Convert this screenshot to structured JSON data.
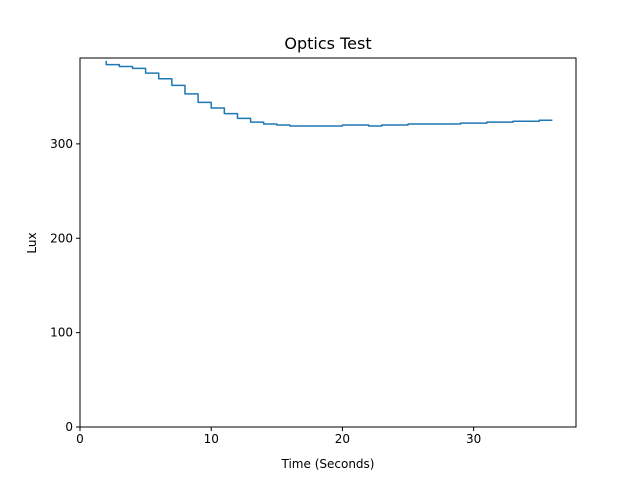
{
  "chart_data": {
    "type": "line",
    "title": "Optics Test",
    "xlabel": "Time (Seconds)",
    "ylabel": "Lux",
    "xlim": [
      0,
      37.8
    ],
    "ylim": [
      0,
      391
    ],
    "xticks": [
      0,
      10,
      20,
      30
    ],
    "yticks": [
      0,
      100,
      200,
      300
    ],
    "grid": false,
    "legend": "none",
    "color": "#1f77b4",
    "series": [
      {
        "x": [
          2.0,
          2.0,
          3.0,
          3.0,
          4.0,
          4.0,
          5.0,
          5.0,
          6.0,
          6.0,
          7.0,
          7.0,
          8.0,
          8.0,
          9.0,
          9.0,
          10.0,
          10.0,
          11.0,
          11.0,
          12.0,
          12.0,
          13.0,
          13.0,
          14.0,
          14.0,
          15.0,
          15.0,
          16.0,
          16.0,
          17.0,
          17.0,
          18.0,
          18.0,
          19.0,
          19.0,
          20.0,
          20.0,
          21.0,
          21.0,
          22.0,
          22.0,
          23.0,
          23.0,
          24.0,
          24.0,
          25.0,
          25.0,
          26.0,
          26.0,
          27.0,
          27.0,
          28.0,
          28.0,
          29.0,
          29.0,
          30.0,
          30.0,
          31.0,
          31.0,
          32.0,
          32.0,
          33.0,
          33.0,
          34.0,
          34.0,
          35.0,
          35.0,
          36.0
        ],
        "y": [
          388,
          384,
          384,
          382,
          382,
          380,
          380,
          375,
          375,
          369,
          369,
          362,
          362,
          353,
          353,
          344,
          344,
          338,
          338,
          332,
          332,
          327,
          327,
          323,
          323,
          321,
          321,
          320,
          320,
          319,
          319,
          319,
          319,
          319,
          319,
          319,
          319,
          320,
          320,
          320,
          320,
          319,
          319,
          320,
          320,
          320,
          320,
          321,
          321,
          321,
          321,
          321,
          321,
          321,
          321,
          322,
          322,
          322,
          322,
          323,
          323,
          323,
          323,
          324,
          324,
          324,
          324,
          325,
          325
        ]
      }
    ]
  }
}
